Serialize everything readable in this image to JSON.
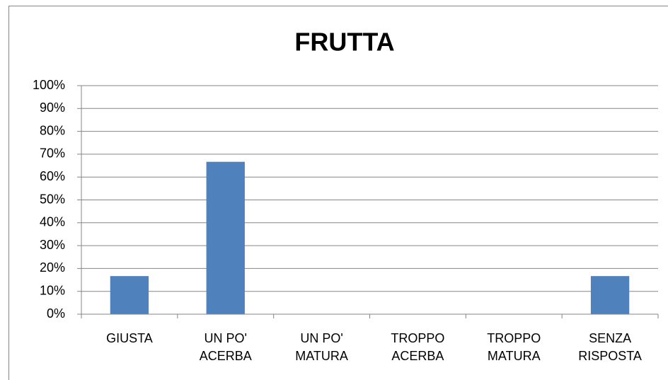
{
  "chart_data": {
    "type": "bar",
    "title": "FRUTTA",
    "categories": [
      "GIUSTA",
      "UN PO' ACERBA",
      "UN PO' MATURA",
      "TROPPO ACERBA",
      "TROPPO MATURA",
      "SENZA RISPOSTA"
    ],
    "values": [
      16.67,
      66.67,
      0,
      0,
      0,
      16.67
    ],
    "color": "#4f81bd",
    "ylim": [
      0,
      100
    ],
    "yticks": [
      {
        "value": 0,
        "label": "0%"
      },
      {
        "value": 10,
        "label": "10%"
      },
      {
        "value": 20,
        "label": "20%"
      },
      {
        "value": 30,
        "label": "30%"
      },
      {
        "value": 40,
        "label": "40%"
      },
      {
        "value": 50,
        "label": "50%"
      },
      {
        "value": 60,
        "label": "60%"
      },
      {
        "value": 70,
        "label": "70%"
      },
      {
        "value": 80,
        "label": "80%"
      },
      {
        "value": 90,
        "label": "90%"
      },
      {
        "value": 100,
        "label": "100%"
      }
    ],
    "grid": true
  }
}
